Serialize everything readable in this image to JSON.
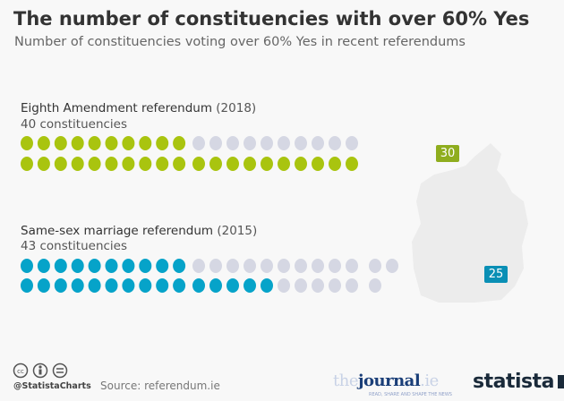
{
  "title": "The number of constituencies with over 60% Yes",
  "subtitle": "Number of  constituencies voting  over 60% Yes in recent referendums",
  "chart_data": {
    "type": "dot-matrix",
    "title": "The number of constituencies with over 60% Yes",
    "subtitle": "Number of  constituencies voting  over 60% Yes in recent referendums",
    "series": [
      {
        "name": "Eighth Amendment referendum",
        "year": "(2018)",
        "total_label": "40 constituencies",
        "total": 40,
        "value": 30,
        "value_label": "30",
        "color": "#a9c40f"
      },
      {
        "name": "Same-sex marriage referendum",
        "year": "(2015)",
        "total_label": "43 constituencies",
        "total": 43,
        "value": 25,
        "value_label": "25",
        "color": "#06a3c9"
      }
    ],
    "empty_color": "#d5d7e3"
  },
  "footer": {
    "handle": "@StatistaCharts",
    "source": "Source: referendum.ie",
    "partner_logo": "thejournal.ie",
    "partner_tagline": "READ, SHARE AND SHAPE THE NEWS",
    "brand_logo": "statista"
  },
  "icons": [
    "cc-icon",
    "attribution-icon",
    "no-derivatives-icon"
  ]
}
